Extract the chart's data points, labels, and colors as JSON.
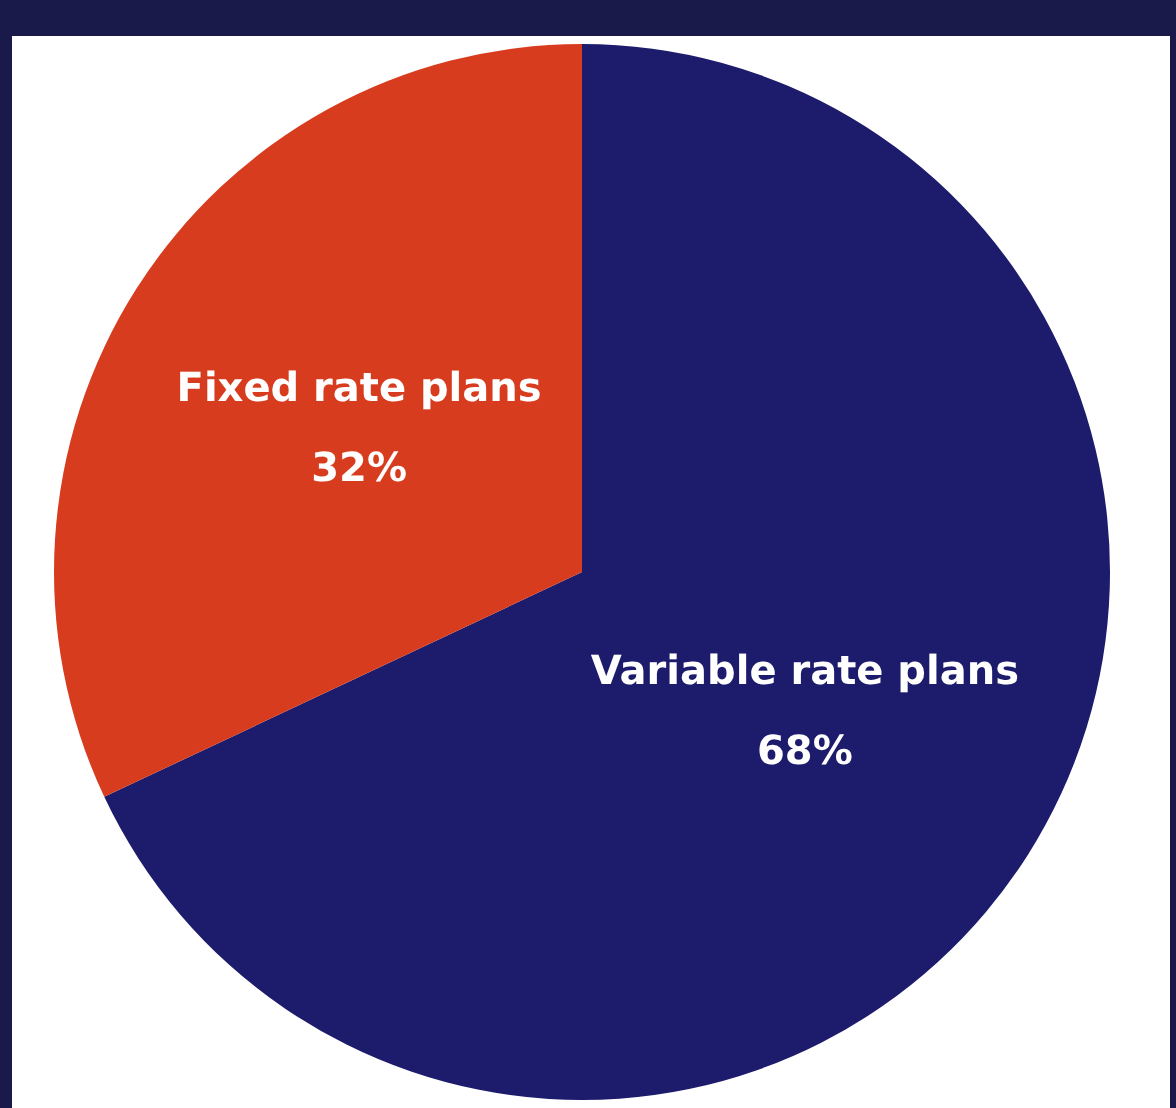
{
  "chart_data": {
    "type": "pie",
    "categories": [
      "Variable rate plans",
      "Fixed rate plans"
    ],
    "values": [
      68,
      32
    ],
    "colors": [
      "#1c1b6c",
      "#d83c1e"
    ],
    "value_labels": [
      "68%",
      "32%"
    ],
    "legend": false
  }
}
